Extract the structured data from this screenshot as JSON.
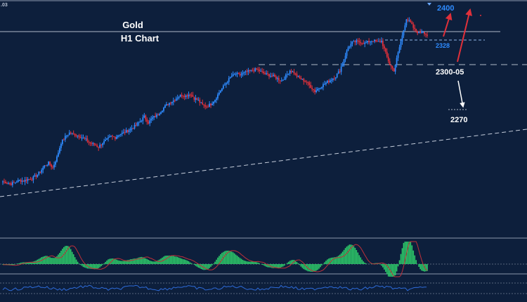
{
  "header": {
    "corner_tick": ".03",
    "title_line1": "Gold",
    "title_line2": "H1 Chart"
  },
  "colors": {
    "background": "#0d1f3c",
    "bull_candle": "#2e8bff",
    "bear_candle": "#e0303a",
    "histogram": "#2ecc6a",
    "signal_line": "#c0303a",
    "rsi_line": "#2e6bd8",
    "level_label_blue": "#2e8bff",
    "level_label_white": "#ffffff",
    "arrow_red": "#e0303a",
    "arrow_white": "#ffffff"
  },
  "annotations": {
    "target_high": "2400",
    "level_2328": "2328",
    "level_support": "2300-05",
    "target_low": "2270"
  },
  "chart_data": {
    "type": "candlestick",
    "title": "Gold H1 Chart",
    "instrument": "Gold",
    "timeframe": "H1",
    "horizontal_levels": [
      2400,
      2328,
      2300,
      2270
    ],
    "price_path": [
      2108,
      2106,
      2104,
      2107,
      2110,
      2109,
      2112,
      2113,
      2118,
      2125,
      2135,
      2140,
      2132,
      2150,
      2175,
      2185,
      2192,
      2190,
      2188,
      2184,
      2180,
      2174,
      2172,
      2168,
      2175,
      2180,
      2186,
      2184,
      2190,
      2192,
      2196,
      2200,
      2205,
      2212,
      2220,
      2210,
      2218,
      2222,
      2230,
      2238,
      2244,
      2248,
      2254,
      2258,
      2256,
      2260,
      2252,
      2248,
      2240,
      2238,
      2242,
      2250,
      2262,
      2272,
      2282,
      2290,
      2294,
      2292,
      2296,
      2298,
      2300,
      2302,
      2298,
      2294,
      2292,
      2290,
      2286,
      2282,
      2290,
      2300,
      2296,
      2288,
      2284,
      2280,
      2272,
      2264,
      2270,
      2275,
      2280,
      2285,
      2290,
      2300,
      2320,
      2340,
      2348,
      2350,
      2349,
      2347,
      2350,
      2352,
      2349,
      2351,
      2330,
      2310,
      2300,
      2330,
      2360,
      2390,
      2382,
      2370,
      2365,
      2368,
      2360
    ],
    "indicators": [
      {
        "type": "histogram",
        "name": "MACD"
      },
      {
        "type": "line",
        "name": "RSI"
      }
    ]
  }
}
